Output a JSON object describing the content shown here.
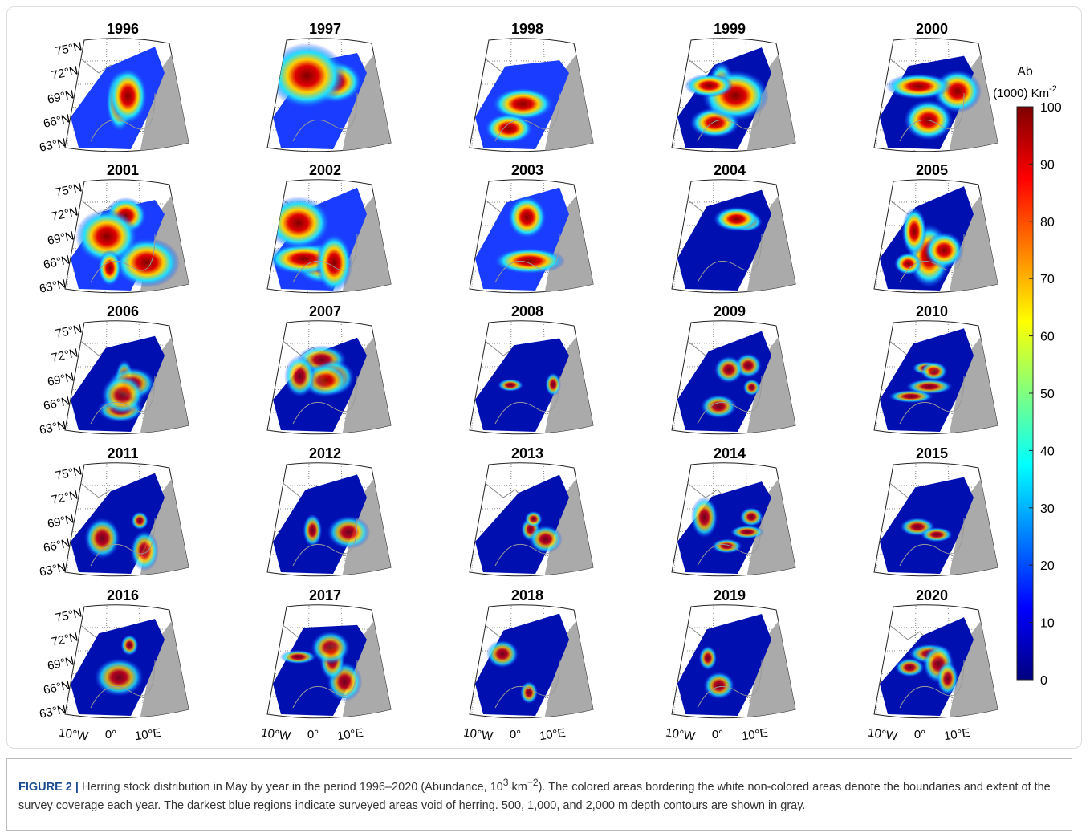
{
  "panels": [
    {
      "title": "1996"
    },
    {
      "title": "1997"
    },
    {
      "title": "1998"
    },
    {
      "title": "1999"
    },
    {
      "title": "2000"
    },
    {
      "title": "2001"
    },
    {
      "title": "2002"
    },
    {
      "title": "2003"
    },
    {
      "title": "2004"
    },
    {
      "title": "2005"
    },
    {
      "title": "2006"
    },
    {
      "title": "2007"
    },
    {
      "title": "2008"
    },
    {
      "title": "2009"
    },
    {
      "title": "2010"
    },
    {
      "title": "2011"
    },
    {
      "title": "2012"
    },
    {
      "title": "2013"
    },
    {
      "title": "2014"
    },
    {
      "title": "2015"
    },
    {
      "title": "2016"
    },
    {
      "title": "2017"
    },
    {
      "title": "2018"
    },
    {
      "title": "2019"
    },
    {
      "title": "2020"
    }
  ],
  "lat_labels": [
    "75°N",
    "72°N",
    "69°N",
    "66°N",
    "63°N"
  ],
  "lon_labels": [
    "10°W",
    "0°",
    "10°E"
  ],
  "colorbar": {
    "label": "Ab",
    "unit_base": "(1000) Km",
    "unit_exp": "-2",
    "range": [
      0,
      100
    ],
    "ticks": [
      0,
      10,
      20,
      30,
      40,
      50,
      60,
      70,
      80,
      90,
      100
    ]
  },
  "caption": {
    "label": "FIGURE 2 |",
    "part1": " Herring stock distribution in May by year in the period 1996–2020 (Abundance, 10",
    "sup1": "3",
    "part2": " km",
    "sup2": "−2",
    "part3": "). The colored areas bordering the white non-colored areas denote the boundaries and extent of the survey coverage each year. The darkest blue regions indicate surveyed areas void of herring. 500, 1,000, and 2,000 m depth contours are shown in gray."
  }
}
